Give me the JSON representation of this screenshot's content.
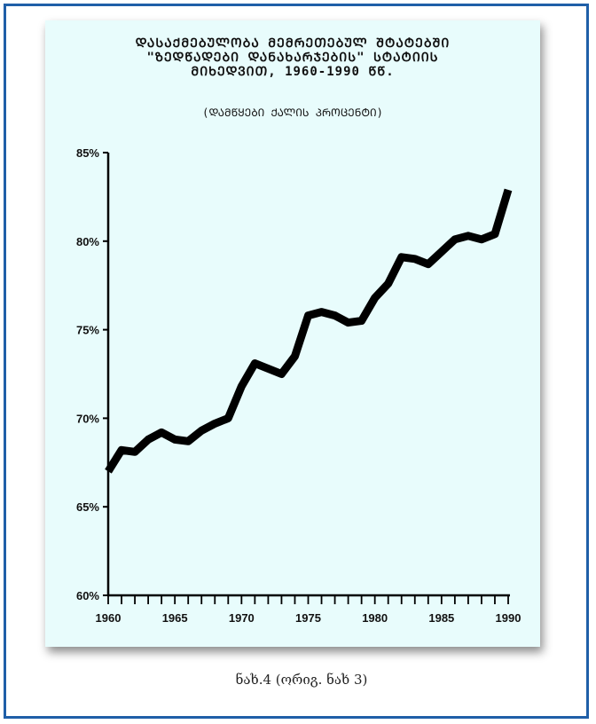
{
  "figure": {
    "title_lines": [
      "ᲓᲐᲡᲐᲥᲛᲔᲑᲣᲚᲝᲑᲐ ᲛᲔᲛᲠᲔᲗᲔᲑᲣᲚ ᲨᲢᲐᲢᲔᲑᲨᲘ",
      "\"ᲖᲔᲓᲬᲐᲓᲔᲑᲘ ᲓᲐᲜᲐᲮᲐᲠᲯᲔᲑᲘᲡ\" ᲡᲢᲐᲢᲘᲘᲡ",
      "ᲛᲘᲮᲔᲓᲕᲘᲗ, 1960-1990 ᲬᲬ."
    ],
    "subtitle": "(ᲓᲐᲛᲬᲧᲔᲑᲘ ᲥᲐᲚᲘᲡ ᲞᲠᲝᲪᲔᲜᲢᲘ)",
    "caption": "ნახ.4 (ორიგ. ნახ 3)"
  },
  "colors": {
    "frame_border": "#1f5fa8",
    "panel_background": "#e8fcfc",
    "line": "#000000"
  },
  "chart_data": {
    "type": "line",
    "title": "",
    "xlabel": "",
    "ylabel": "",
    "x": [
      1960,
      1961,
      1962,
      1963,
      1964,
      1965,
      1966,
      1967,
      1968,
      1969,
      1970,
      1971,
      1972,
      1973,
      1974,
      1975,
      1976,
      1977,
      1978,
      1979,
      1980,
      1981,
      1982,
      1983,
      1984,
      1985,
      1986,
      1987,
      1988,
      1989,
      1990
    ],
    "series": [
      {
        "values": [
          67.0,
          68.2,
          68.1,
          68.8,
          69.2,
          68.8,
          68.7,
          69.3,
          69.7,
          70.0,
          71.8,
          73.1,
          72.8,
          72.5,
          73.5,
          75.8,
          76.0,
          75.8,
          75.4,
          75.5,
          76.8,
          77.6,
          79.1,
          79.0,
          78.7,
          79.4,
          80.1,
          80.3,
          80.1,
          80.4,
          82.9
        ]
      }
    ],
    "xlim": [
      1960,
      1990
    ],
    "ylim": [
      60,
      85
    ],
    "x_tick_labels": [
      "1960",
      "1965",
      "1970",
      "1975",
      "1980",
      "1985",
      "1990"
    ],
    "y_tick_labels": [
      "60%",
      "65%",
      "70%",
      "75%",
      "80%",
      "85%"
    ],
    "grid": false,
    "legend": "none"
  }
}
